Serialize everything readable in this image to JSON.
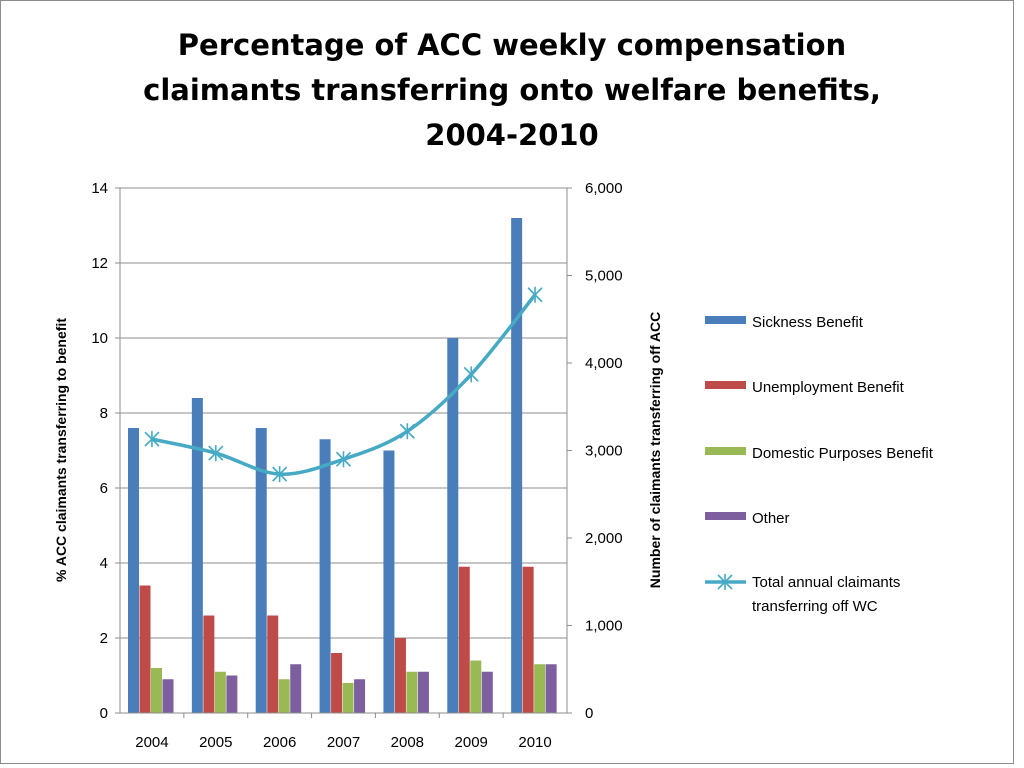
{
  "chart_data": {
    "type": "bar",
    "title_lines": [
      "Percentage of ACC weekly compensation",
      "claimants transferring onto welfare benefits,",
      "2004-2010"
    ],
    "categories": [
      "2004",
      "2005",
      "2006",
      "2007",
      "2008",
      "2009",
      "2010"
    ],
    "ylabel_left": "% ACC claimants  transferring to benefit",
    "ylabel_right": "Number of claimants  transferring off ACC",
    "ylim_left": [
      0,
      14
    ],
    "yticks_left": [
      "0",
      "2",
      "4",
      "6",
      "8",
      "10",
      "12",
      "14"
    ],
    "ylim_right": [
      0,
      6000
    ],
    "yticks_right": [
      "0",
      "1,000",
      "2,000",
      "3,000",
      "4,000",
      "5,000",
      "6,000"
    ],
    "grid": true,
    "legend_position": "right",
    "series": [
      {
        "name": "Sickness Benefit",
        "type": "bar",
        "axis": "left",
        "color": "#4a7ebb",
        "values": [
          7.6,
          8.4,
          7.6,
          7.3,
          7.0,
          10.0,
          13.2
        ]
      },
      {
        "name": "Unemployment Benefit",
        "type": "bar",
        "axis": "left",
        "color": "#be4b48",
        "values": [
          3.4,
          2.6,
          2.6,
          1.6,
          2.0,
          3.9,
          3.9
        ]
      },
      {
        "name": "Domestic Purposes Benefit",
        "type": "bar",
        "axis": "left",
        "color": "#98b954",
        "values": [
          1.2,
          1.1,
          0.9,
          0.8,
          1.1,
          1.4,
          1.3
        ]
      },
      {
        "name": "Other",
        "type": "bar",
        "axis": "left",
        "color": "#7d5fa0",
        "values": [
          0.9,
          1.0,
          1.3,
          0.9,
          1.1,
          1.1,
          1.3
        ]
      }
    ],
    "line_series": {
      "name": "Total annual claimants transferring off WC",
      "legend_lines": [
        "Total annual claimants",
        "transferring off WC"
      ],
      "type": "line",
      "axis": "right",
      "marker": "asterisk",
      "color": "#46aac5",
      "values": [
        3130,
        2970,
        2730,
        2900,
        3220,
        3870,
        4780
      ]
    }
  }
}
